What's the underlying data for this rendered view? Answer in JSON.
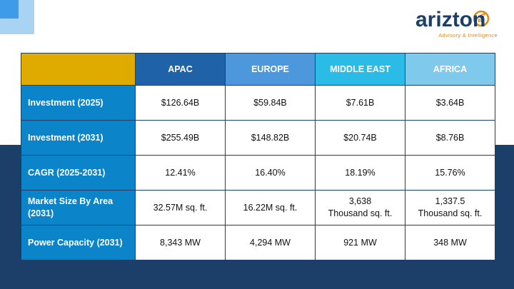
{
  "brand": {
    "name": "arizton",
    "tagline": "Advisory & Intelligence"
  },
  "table": {
    "columns": [
      "",
      "APAC",
      "EUROPE",
      "MIDDLE EAST",
      "AFRICA"
    ],
    "rows": [
      {
        "label": "Investment (2025)",
        "cells": [
          [
            "$126.64B"
          ],
          [
            "$59.84B"
          ],
          [
            "$7.61B"
          ],
          [
            "$3.64B"
          ]
        ]
      },
      {
        "label": "Investment (2031)",
        "cells": [
          [
            "$255.49B"
          ],
          [
            "$148.82B"
          ],
          [
            "$20.74B"
          ],
          [
            "$8.76B"
          ]
        ]
      },
      {
        "label": "CAGR (2025-2031)",
        "cells": [
          [
            "12.41%"
          ],
          [
            "16.40%"
          ],
          [
            "18.19%"
          ],
          [
            "15.76%"
          ]
        ]
      },
      {
        "label": "Market Size By Area (2031)",
        "cells": [
          [
            "32.57M sq. ft."
          ],
          [
            "16.22M sq. ft."
          ],
          [
            "3,638",
            "Thousand sq. ft."
          ],
          [
            "1,337.5",
            "Thousand sq. ft."
          ]
        ]
      },
      {
        "label": "Power Capacity (2031)",
        "cells": [
          [
            "8,343 MW"
          ],
          [
            "4,294 MW"
          ],
          [
            "921 MW"
          ],
          [
            "348 MW"
          ]
        ]
      }
    ]
  },
  "colors": {
    "header_corner": "#e0ab00",
    "header_apac": "#1f62a8",
    "header_europe": "#4d98dc",
    "header_middle_east": "#2bbbe7",
    "header_africa": "#7fcaec",
    "row_label": "#0b84c9",
    "navy": "#1c3f6a",
    "accent_orange": "#e08a1b"
  }
}
